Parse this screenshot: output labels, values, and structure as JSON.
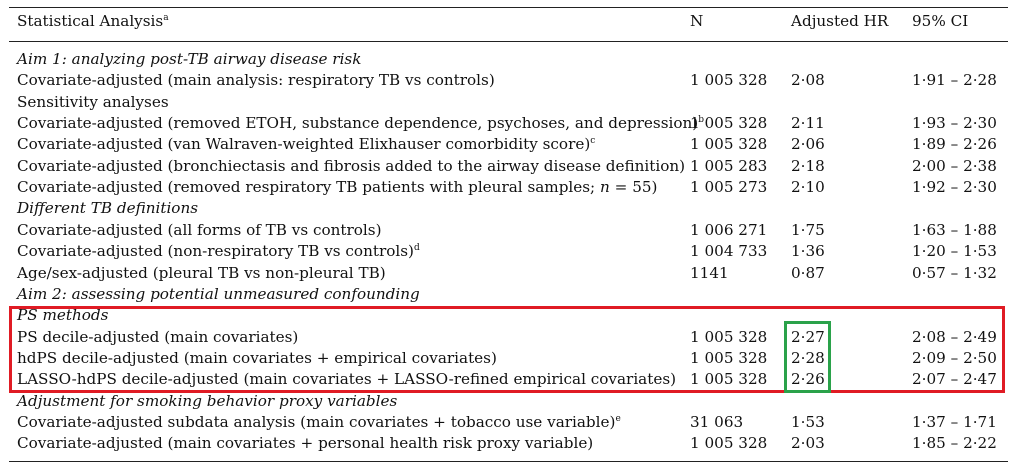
{
  "header": {
    "analysis": "Statistical Analysis",
    "analysis_sup": "a",
    "n": "N",
    "hr": "Adjusted HR",
    "ci": "95% CI"
  },
  "rows": [
    {
      "type": "section",
      "label": "Aim 1: analyzing post-TB airway disease risk"
    },
    {
      "type": "data",
      "label": "Covariate-adjusted (main analysis: respiratory TB vs controls)",
      "n": "1 005 328",
      "hr": "2·08",
      "ci": "1·91 – 2·28"
    },
    {
      "type": "plain",
      "label": "Sensitivity analyses"
    },
    {
      "type": "data",
      "label": "Covariate-adjusted (removed ETOH, substance dependence, psychoses, and depression)",
      "sup": "b",
      "n": "1 005 328",
      "hr": "2·11",
      "ci": "1·93 – 2·30"
    },
    {
      "type": "data",
      "label": "Covariate-adjusted (van Walraven-weighted Elixhauser comorbidity score)",
      "sup": "c",
      "n": "1 005 328",
      "hr": "2·06",
      "ci": "1·89 – 2·26"
    },
    {
      "type": "data",
      "label": "Covariate-adjusted (bronchiectasis and fibrosis added to the airway disease definition)",
      "n": "1 005 283",
      "hr": "2·18",
      "ci": "2·00 – 2·38"
    },
    {
      "type": "data",
      "label": "Covariate-adjusted (removed respiratory TB patients with pleural samples;",
      "label_italic": "n",
      "label_tail": " = 55)",
      "n": "1 005 273",
      "hr": "2·10",
      "ci": "1·92 – 2·30"
    },
    {
      "type": "section",
      "label": "Different TB definitions"
    },
    {
      "type": "data",
      "label": "Covariate-adjusted (all forms of TB vs controls)",
      "n": "1 006 271",
      "hr": "1·75",
      "ci": "1·63 – 1·88"
    },
    {
      "type": "data",
      "label": "Covariate-adjusted (non-respiratory TB vs controls)",
      "sup": "d",
      "n": "1 004 733",
      "hr": "1·36",
      "ci": "1·20 – 1·53"
    },
    {
      "type": "data",
      "label": "Age/sex-adjusted (pleural TB vs non-pleural TB)",
      "n": "1141",
      "hr": "0·87",
      "ci": "0·57 – 1·32"
    },
    {
      "type": "section",
      "label": "Aim 2: assessing potential unmeasured confounding"
    },
    {
      "type": "section",
      "label": "PS methods"
    },
    {
      "type": "data",
      "label": "PS decile-adjusted (main covariates)",
      "n": "1 005 328",
      "hr": "2·27",
      "ci": "2·08 – 2·49"
    },
    {
      "type": "data",
      "label": "hdPS decile-adjusted (main covariates + empirical covariates)",
      "n": "1 005 328",
      "hr": "2·28",
      "ci": "2·09 – 2·50"
    },
    {
      "type": "data",
      "label": "LASSO-hdPS decile-adjusted (main covariates + LASSO-refined empirical  covariates)",
      "n": "1 005 328",
      "hr": "2·26",
      "ci": "2·07 – 2·47"
    },
    {
      "type": "section",
      "label": "Adjustment for smoking behavior proxy variables"
    },
    {
      "type": "data",
      "label": "Covariate-adjusted subdata analysis (main covariates + tobacco use variable)",
      "sup": "e",
      "n": "31 063",
      "hr": "1·53",
      "ci": "1·37 – 1·71"
    },
    {
      "type": "data",
      "label": "Covariate-adjusted (main covariates + personal health risk proxy variable)",
      "n": "1 005 328",
      "hr": "2·03",
      "ci": "1·85 – 2·22"
    }
  ],
  "highlights": {
    "red_box_color": "#e01b24",
    "green_box_color": "#2aa24a"
  }
}
